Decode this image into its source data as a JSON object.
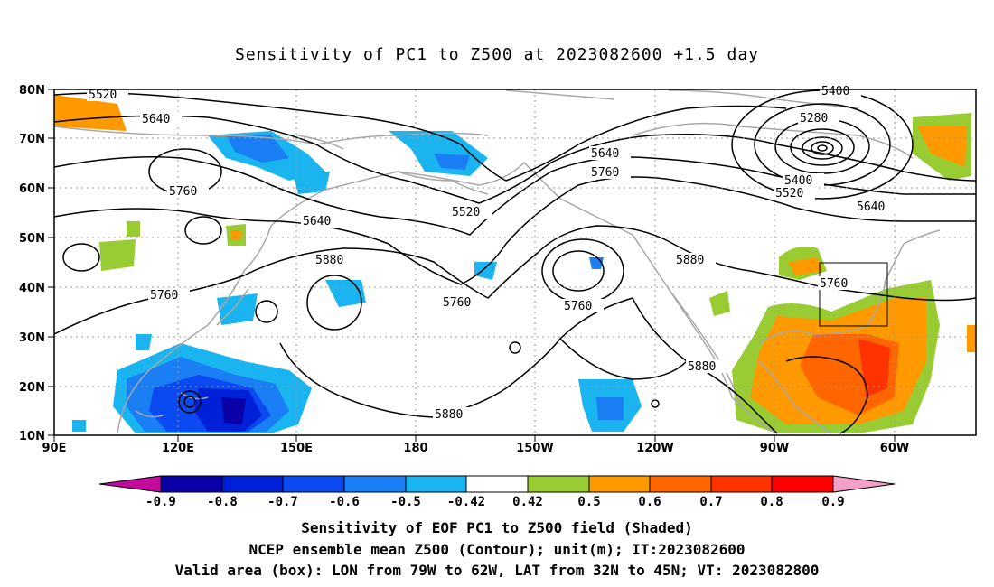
{
  "title": "Sensitivity of PC1 to Z500 at 2023082600 +1.5 day",
  "lat_labels": [
    "80N",
    "70N",
    "60N",
    "50N",
    "40N",
    "30N",
    "20N",
    "10N"
  ],
  "lon_labels": [
    "90E",
    "120E",
    "150E",
    "180",
    "150W",
    "120W",
    "90W",
    "60W"
  ],
  "contour_labels": [
    {
      "text": "5520",
      "value": 5520
    },
    {
      "text": "5640",
      "value": 5640
    },
    {
      "text": "5760",
      "value": 5760
    },
    {
      "text": "5640",
      "value": 5640
    },
    {
      "text": "5880",
      "value": 5880
    },
    {
      "text": "5760",
      "value": 5760
    },
    {
      "text": "5520",
      "value": 5520
    },
    {
      "text": "5760",
      "value": 5760
    },
    {
      "text": "5640",
      "value": 5640
    },
    {
      "text": "5760",
      "value": 5760
    },
    {
      "text": "5880",
      "value": 5880
    },
    {
      "text": "5880",
      "value": 5880
    },
    {
      "text": "5880",
      "value": 5880
    },
    {
      "text": "5400",
      "value": 5400
    },
    {
      "text": "5280",
      "value": 5280
    },
    {
      "text": "5400",
      "value": 5400
    },
    {
      "text": "5520",
      "value": 5520
    },
    {
      "text": "5640",
      "value": 5640
    },
    {
      "text": "5760",
      "value": 5760
    },
    {
      "text": "5760",
      "value": 5760
    }
  ],
  "colorbar": {
    "labels": [
      "-0.9",
      "-0.8",
      "-0.7",
      "-0.6",
      "-0.5",
      "-0.42",
      "0.42",
      "0.5",
      "0.6",
      "0.7",
      "0.8",
      "0.9"
    ],
    "colors": [
      "#c40a9a",
      "#0a00a8",
      "#0020d8",
      "#0a4af0",
      "#1a7ef5",
      "#1ab4f0",
      "#ffffff",
      "#99cc33",
      "#ff9900",
      "#ff6600",
      "#ff3300",
      "#ff0000",
      "#f5a0c8"
    ]
  },
  "captions": {
    "line1": "Sensitivity of EOF PC1 to Z500 field (Shaded)",
    "line2": "NCEP ensemble mean Z500 (Contour); unit(m); IT:2023082600",
    "line3": "Valid area (box): LON from 79W to 62W, LAT from 32N to 45N; VT: 2023082800"
  }
}
